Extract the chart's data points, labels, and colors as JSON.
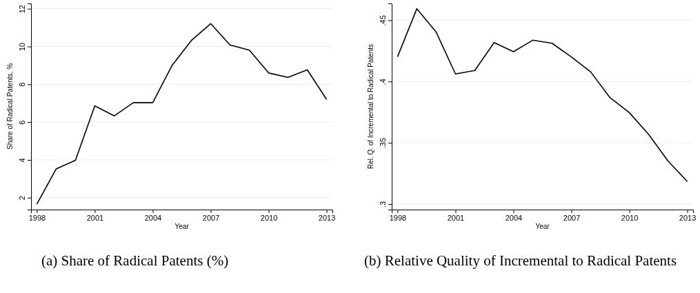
{
  "chart_data": [
    {
      "type": "line",
      "title": "(a) Share of Radical Patents (%)",
      "xlabel": "Year",
      "ylabel": "Share of Radical Patents, %",
      "x": [
        1998,
        1999,
        2000,
        2001,
        2002,
        2003,
        2004,
        2005,
        2006,
        2007,
        2008,
        2009,
        2010,
        2011,
        2012,
        2013
      ],
      "series": [
        {
          "color": "#000000",
          "values": [
            1.66,
            3.52,
            3.98,
            6.86,
            6.33,
            7.03,
            7.03,
            9.0,
            10.32,
            11.21,
            10.08,
            9.81,
            8.6,
            8.37,
            8.77,
            7.2
          ]
        }
      ],
      "xlim": [
        1997.7,
        2013.3
      ],
      "xticks": [
        1998,
        2001,
        2004,
        2007,
        2010,
        2013
      ],
      "ylim": [
        1.37,
        12.28
      ],
      "yticks": [
        2,
        4,
        6,
        8,
        10,
        12
      ],
      "grid": "y"
    },
    {
      "type": "line",
      "title": "(b) Relative Quality of Incremental to Radical Patents",
      "xlabel": "Year",
      "ylabel": "Rel. Q. of Incremental to Radical Patents",
      "x": [
        1998,
        1999,
        2000,
        2001,
        2002,
        2003,
        2004,
        2005,
        2006,
        2007,
        2008,
        2009,
        2010,
        2011,
        2012,
        2013
      ],
      "series": [
        {
          "color": "#000000",
          "values": [
            0.4202,
            0.4594,
            0.4403,
            0.4062,
            0.409,
            0.4318,
            0.4243,
            0.4337,
            0.4312,
            0.42,
            0.4078,
            0.3868,
            0.3746,
            0.3568,
            0.3352,
            0.3184
          ]
        }
      ],
      "xlim": [
        1997.7,
        2013.3
      ],
      "xticks": [
        1998,
        2001,
        2004,
        2007,
        2010,
        2013
      ],
      "ylim": [
        0.2955,
        0.4637
      ],
      "yticks": [
        {
          "value": 0.3,
          "label": ".3"
        },
        {
          "value": 0.35,
          "label": ".35"
        },
        {
          "value": 0.4,
          "label": ".4"
        },
        {
          "value": 0.45,
          "label": ".45"
        }
      ],
      "grid": "y"
    }
  ]
}
